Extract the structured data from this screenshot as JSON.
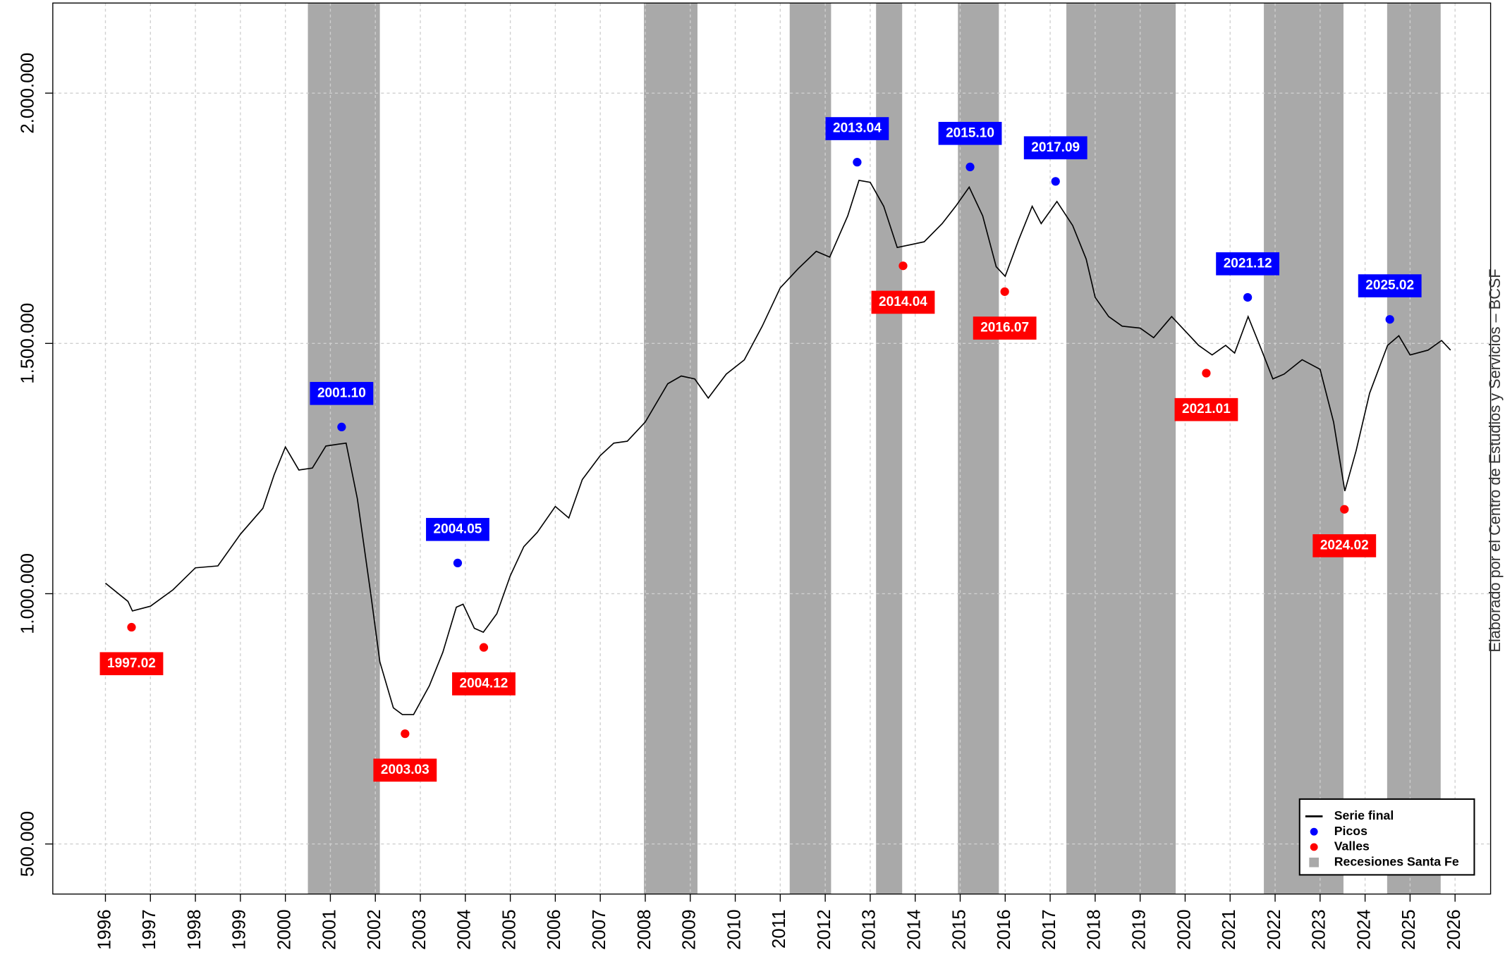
{
  "chart_data": {
    "type": "line",
    "xlim": [
      1994.83,
      2026.79
    ],
    "ylim": [
      400000,
      2180000
    ],
    "xticks": [
      1996,
      1997,
      1998,
      1999,
      2000,
      2001,
      2002,
      2003,
      2004,
      2005,
      2006,
      2007,
      2008,
      2009,
      2010,
      2011,
      2012,
      2013,
      2014,
      2015,
      2016,
      2017,
      2018,
      2019,
      2020,
      2021,
      2022,
      2023,
      2024,
      2025,
      2026
    ],
    "yticks": [
      {
        "value": 500000,
        "label": "500.000"
      },
      {
        "value": 1000000,
        "label": "1.000.000"
      },
      {
        "value": 1500000,
        "label": "1.500.000"
      },
      {
        "value": 2000000,
        "label": "2.000.000"
      }
    ],
    "grid": true,
    "legend": "bottom-right",
    "source": "Elaborado por el Centro de Estudios y Servicios – BCSF",
    "series": [
      {
        "name": "Serie final",
        "color": "#000000",
        "type": "line",
        "x": [
          1996.0,
          1996.5,
          1996.6,
          1997.0,
          1997.5,
          1998.0,
          1998.5,
          1999.0,
          1999.5,
          1999.75,
          2000.0,
          2000.3,
          2000.6,
          2000.9,
          2001.2,
          2001.35,
          2001.6,
          2001.9,
          2002.1,
          2002.4,
          2002.6,
          2002.85,
          2003.2,
          2003.5,
          2003.8,
          2003.95,
          2004.2,
          2004.4,
          2004.7,
          2005.0,
          2005.3,
          2005.6,
          2006.0,
          2006.3,
          2006.6,
          2007.0,
          2007.3,
          2007.6,
          2008.0,
          2008.5,
          2008.8,
          2009.1,
          2009.4,
          2009.8,
          2010.2,
          2010.6,
          2011.0,
          2011.4,
          2011.8,
          2012.1,
          2012.5,
          2012.75,
          2013.0,
          2013.3,
          2013.6,
          2013.9,
          2014.2,
          2014.6,
          2014.9,
          2015.2,
          2015.5,
          2015.8,
          2016.0,
          2016.3,
          2016.6,
          2016.8,
          2017.15,
          2017.5,
          2017.8,
          2018.0,
          2018.3,
          2018.6,
          2019.0,
          2019.3,
          2019.7,
          2020.0,
          2020.3,
          2020.6,
          2020.9,
          2021.1,
          2021.4,
          2021.7,
          2021.95,
          2022.2,
          2022.6,
          2023.0,
          2023.3,
          2023.55,
          2023.8,
          2024.1,
          2024.5,
          2024.75,
          2025.0,
          2025.4,
          2025.7,
          2025.9
        ],
        "values": [
          1021000,
          984700,
          965500,
          975000,
          1007700,
          1051700,
          1055500,
          1118800,
          1170500,
          1237500,
          1293100,
          1247100,
          1251000,
          1295000,
          1299000,
          1300800,
          1189700,
          998000,
          864000,
          772000,
          758600,
          758600,
          816000,
          883000,
          973000,
          979000,
          931000,
          923000,
          960000,
          1036000,
          1094000,
          1122600,
          1174300,
          1151300,
          1228000,
          1276000,
          1300800,
          1304600,
          1343000,
          1419500,
          1434900,
          1429000,
          1390800,
          1438700,
          1467000,
          1534500,
          1611000,
          1649400,
          1684000,
          1672400,
          1754800,
          1825700,
          1821800,
          1774000,
          1691600,
          1697300,
          1703000,
          1739400,
          1774000,
          1812300,
          1754800,
          1653300,
          1634000,
          1706900,
          1774000,
          1739400,
          1783500,
          1735600,
          1668600,
          1592000,
          1553600,
          1534500,
          1530600,
          1511500,
          1553600,
          1524900,
          1496100,
          1477000,
          1496100,
          1480800,
          1553600,
          1486600,
          1429100,
          1438700,
          1467400,
          1448300,
          1342900,
          1205000,
          1285400,
          1400400,
          1496100,
          1515300,
          1477000,
          1486600,
          1505700,
          1486600
        ]
      },
      {
        "name": "Picos",
        "color": "#0000ff",
        "type": "scatter",
        "x": [
          2001.25,
          2003.83,
          2012.71,
          2015.22,
          2017.12,
          2021.39,
          2024.55
        ],
        "values": [
          1333000,
          1061300,
          1862000,
          1852500,
          1823700,
          1592000,
          1548000
        ],
        "labels": [
          "2001.10",
          "2004.05",
          "2013.04",
          "2015.10",
          "2017.09",
          "2021.12",
          "2025.02"
        ]
      },
      {
        "name": "Valles",
        "color": "#ff0000",
        "type": "scatter",
        "x": [
          1996.58,
          2002.66,
          2004.41,
          2013.73,
          2015.99,
          2020.47,
          2023.54
        ],
        "values": [
          933000,
          720300,
          892700,
          1655000,
          1603400,
          1440600,
          1168600
        ],
        "labels": [
          "1997.02",
          "2003.03",
          "2004.12",
          "2014.04",
          "2016.07",
          "2021.01",
          "2024.02"
        ]
      },
      {
        "name": "Recesiones Santa Fe",
        "color": "#a9a9a9",
        "type": "band",
        "bands": [
          [
            2000.5,
            2002.1
          ],
          [
            2007.97,
            2009.16
          ],
          [
            2011.21,
            2012.13
          ],
          [
            2013.13,
            2013.71
          ],
          [
            2014.95,
            2015.86
          ],
          [
            2017.36,
            2019.79
          ],
          [
            2021.75,
            2023.52
          ],
          [
            2024.49,
            2025.68
          ]
        ]
      }
    ]
  }
}
